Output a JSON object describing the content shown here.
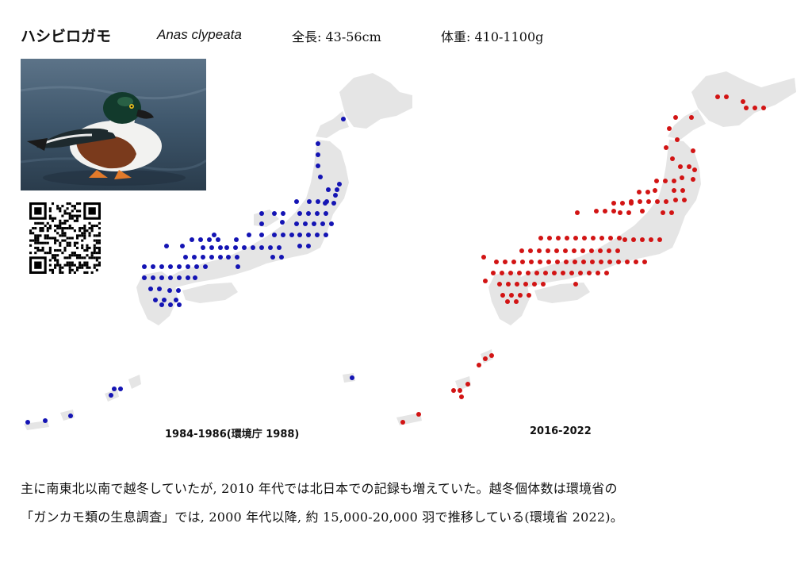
{
  "header": {
    "name_ja": "ハシビロガモ",
    "scientific_name": "Anas clypeata",
    "length": "全長: 43-56cm",
    "weight": "体重: 410-1100g"
  },
  "photo": {
    "subject": "northern-shoveler-male"
  },
  "qr_code": {
    "icon": "qr-code-icon"
  },
  "maps": [
    {
      "caption": "1984-1986(環境庁 1988)",
      "dot_color": "#1414b4",
      "land_color": "#e5e5e5"
    },
    {
      "caption": "2016-2022",
      "dot_color": "#d21414",
      "land_color": "#e5e5e5"
    }
  ],
  "description": {
    "line1": "主に南東北以南で越冬していたが, 2010 年代では北日本での記録も増えていた。越冬個体数は環境省の",
    "line2": "「ガンカモ類の生息調査」では, 2000 年代以降, 約 15,000-20,000 羽で推移している(環境省 2022)。"
  }
}
